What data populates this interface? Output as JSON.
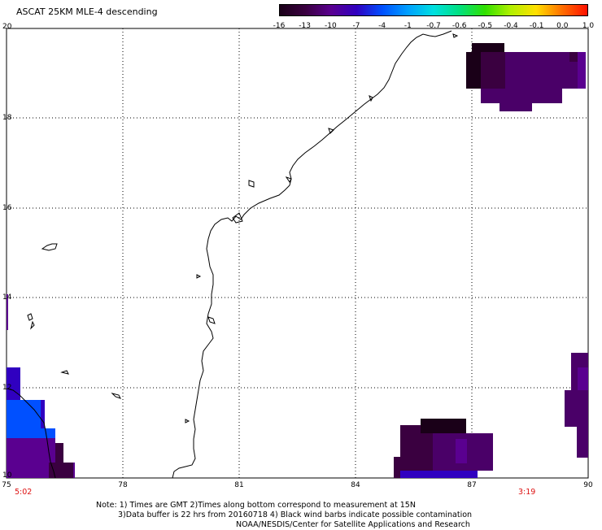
{
  "title": "ASCAT 25KM MLE-4 descending",
  "colorbar": {
    "labels": [
      "-16",
      "-13",
      "-10",
      "-7",
      "-4",
      "-1",
      "-0.7",
      "-0.6",
      "-0.5",
      "-0.4",
      "-0.1",
      "0.0",
      "1.0"
    ],
    "colors": [
      "#1a0018",
      "#3a0040",
      "#5a0090",
      "#3000c0",
      "#0050ff",
      "#00a0ff",
      "#00e0e0",
      "#00e080",
      "#30e000",
      "#b0f000",
      "#ffe000",
      "#ff7000",
      "#ff1000"
    ]
  },
  "axes": {
    "lon_labels": [
      "75",
      "78",
      "81",
      "84",
      "87",
      "90"
    ],
    "lat_labels": [
      "20",
      "18",
      "16",
      "14",
      "12",
      "10"
    ]
  },
  "times": {
    "left": "5:02",
    "right": "3:19"
  },
  "notes": [
    "Note: 1) Times are GMT 2)Times along bottom correspond to measurement at 15N",
    "3)Data buffer is 22 hrs from 20160718 4) Black wind barbs indicate possible contamination",
    "NOAA/NESDIS/Center for Satellite Applications and Research"
  ]
}
